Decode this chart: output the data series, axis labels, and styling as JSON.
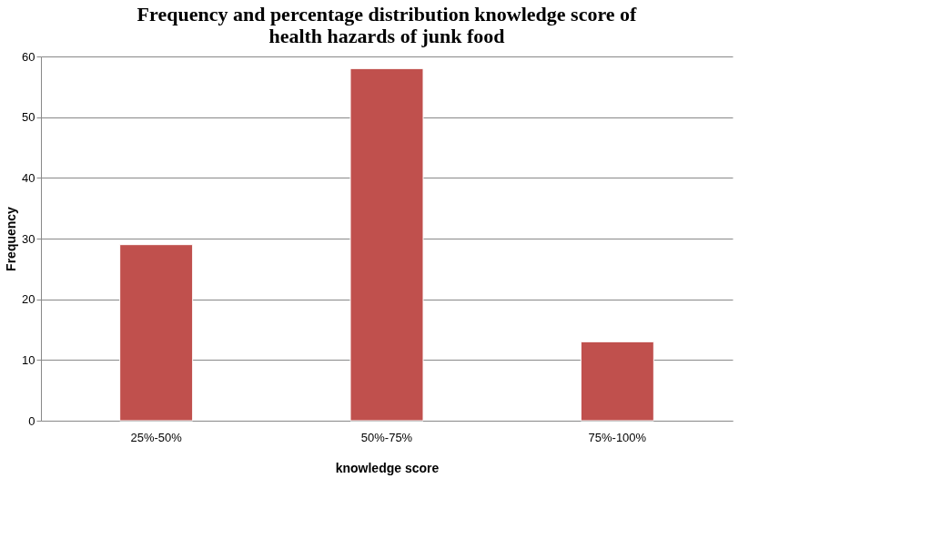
{
  "chart_data": {
    "type": "bar",
    "title": [
      "Frequency and percentage distribution knowledge score of",
      "health hazards of junk food"
    ],
    "xlabel": "knowledge score",
    "ylabel": "Frequency",
    "categories": [
      "25%-50%",
      "50%-75%",
      "75%-100%"
    ],
    "values": [
      29,
      58,
      13
    ],
    "color": "#c0504d",
    "ylim": [
      0,
      60
    ],
    "yticks": [
      0,
      10,
      20,
      30,
      40,
      50,
      60
    ],
    "grid": "y"
  }
}
